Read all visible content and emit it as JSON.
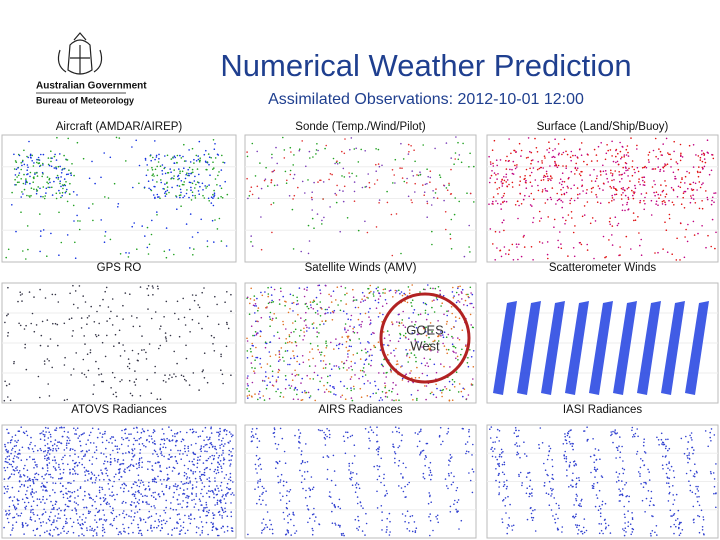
{
  "header": {
    "title": "Numerical Weather Prediction",
    "subtitle": "Assimilated Observations: 2012-10-01 12:00"
  },
  "logo": {
    "line1": "Australian Government",
    "line2": "Bureau of Meteorology"
  },
  "panels": [
    {
      "label": "Aircraft (AMDAR/AIREP)"
    },
    {
      "label": "Sonde (Temp./Wind/Pilot)"
    },
    {
      "label": "Surface (Land/Ship/Buoy)"
    },
    {
      "label": "GPS RO"
    },
    {
      "label": "Satellite Winds (AMV)"
    },
    {
      "label": "Scatterometer Winds"
    },
    {
      "label": "ATOVS Radiances"
    },
    {
      "label": "AIRS Radiances"
    },
    {
      "label": "IASI Radiances"
    }
  ],
  "annotation": {
    "line1": "GOES",
    "line2": "West"
  }
}
